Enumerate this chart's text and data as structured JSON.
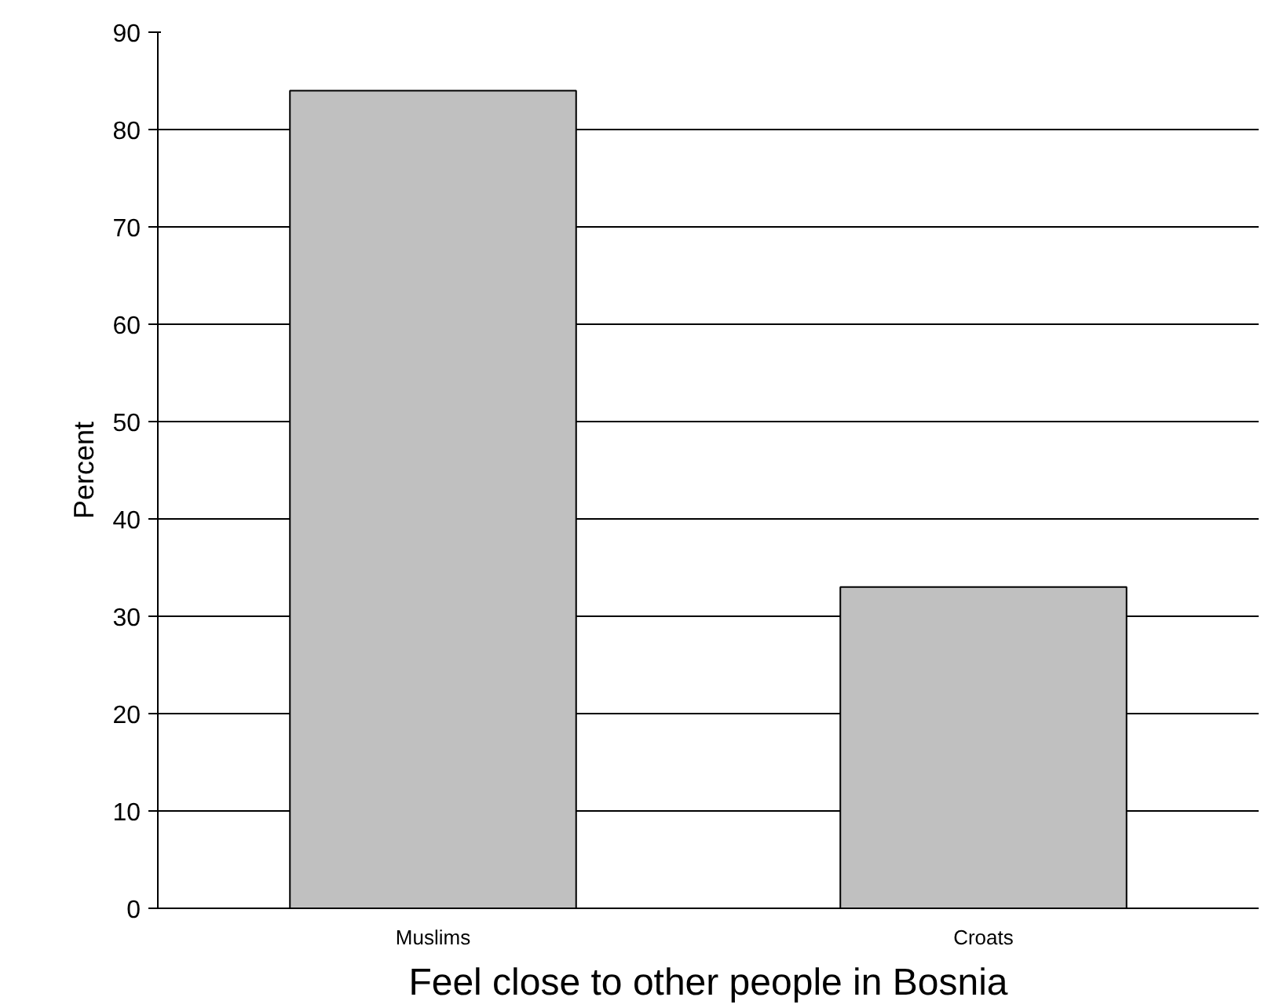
{
  "chart_data": {
    "type": "bar",
    "xlabel": "Feel close to other people in Bosnia",
    "ylabel": "Percent",
    "categories": [
      "Muslims",
      "Croats"
    ],
    "values": [
      84,
      33
    ],
    "color": "#c0c0c0",
    "ylim": [
      0,
      90
    ],
    "yticks": [
      0,
      10,
      20,
      30,
      40,
      50,
      60,
      70,
      80,
      90
    ],
    "grid": "y"
  }
}
